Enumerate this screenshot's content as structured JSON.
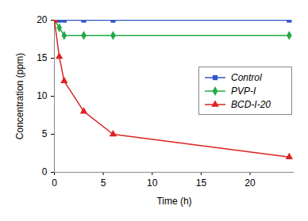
{
  "chart_data": {
    "type": "line",
    "x_label": "Time (h)",
    "y_label": "Concentration (ppm)",
    "x": [
      0,
      0.5,
      1,
      3,
      6,
      24
    ],
    "series": [
      {
        "name": "Control",
        "color": "#3355cc",
        "marker": "square",
        "values": [
          20,
          20,
          20,
          20,
          20,
          20
        ]
      },
      {
        "name": "PVP-I",
        "color": "#22aa44",
        "marker": "diamond",
        "values": [
          20,
          19,
          18,
          18,
          18,
          18
        ]
      },
      {
        "name": "BCD-I-20",
        "color": "#dd2222",
        "marker": "triangle",
        "values": [
          20,
          15.2,
          12,
          8,
          5,
          2
        ]
      }
    ],
    "xlim": [
      0,
      24.5
    ],
    "xticks": [
      0,
      5,
      10,
      15,
      20
    ],
    "ylim": [
      0,
      20
    ],
    "yticks": [
      0,
      5,
      10,
      15,
      20
    ],
    "grid": false,
    "legend": "right"
  }
}
